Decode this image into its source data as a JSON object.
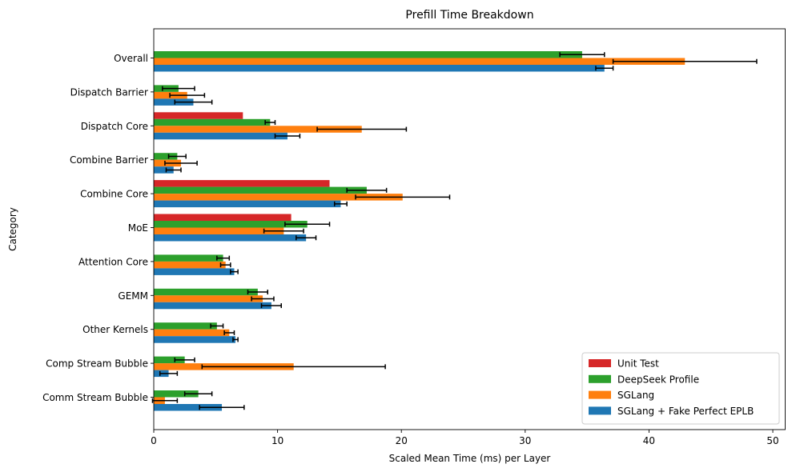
{
  "chart_data": {
    "type": "bar",
    "orientation": "horizontal",
    "title": "Prefill Time Breakdown",
    "xlabel": "Scaled Mean Time (ms) per Layer",
    "ylabel": "Category",
    "xlim": [
      0,
      51
    ],
    "xticks": [
      0,
      10,
      20,
      30,
      40,
      50
    ],
    "grid": false,
    "legend_position": "lower-right",
    "categories": [
      "Overall",
      "Dispatch Barrier",
      "Dispatch Core",
      "Combine Barrier",
      "Combine Core",
      "MoE",
      "Attention Core",
      "GEMM",
      "Other Kernels",
      "Comp Stream Bubble",
      "Comm Stream Bubble"
    ],
    "series": [
      {
        "name": "Unit Test",
        "color": "#d62728",
        "values": [
          null,
          null,
          7.2,
          null,
          14.2,
          11.1,
          null,
          null,
          null,
          null,
          null
        ],
        "errors": [
          null,
          null,
          null,
          null,
          null,
          null,
          null,
          null,
          null,
          null,
          null
        ]
      },
      {
        "name": "DeepSeek Profile",
        "color": "#2ca02c",
        "values": [
          34.6,
          2.0,
          9.4,
          1.9,
          17.2,
          12.4,
          5.6,
          8.4,
          5.1,
          2.5,
          3.6
        ],
        "errors": [
          1.8,
          1.3,
          0.4,
          0.7,
          1.6,
          1.8,
          0.5,
          0.8,
          0.5,
          0.8,
          1.1
        ]
      },
      {
        "name": "SGLang",
        "color": "#ff7f0e",
        "values": [
          42.9,
          2.7,
          16.8,
          2.2,
          20.1,
          10.5,
          5.8,
          8.8,
          6.1,
          11.3,
          0.9
        ],
        "errors": [
          5.8,
          1.4,
          3.6,
          1.3,
          3.8,
          1.6,
          0.4,
          0.9,
          0.4,
          7.4,
          1.0
        ]
      },
      {
        "name": "SGLang + Fake Perfect EPLB",
        "color": "#1f77b4",
        "values": [
          36.4,
          3.2,
          10.8,
          1.6,
          15.1,
          12.3,
          6.5,
          9.5,
          6.6,
          1.2,
          5.5
        ],
        "errors": [
          0.7,
          1.5,
          1.0,
          0.6,
          0.5,
          0.8,
          0.3,
          0.8,
          0.2,
          0.7,
          1.8
        ]
      }
    ],
    "legend_order": [
      "Unit Test",
      "DeepSeek Profile",
      "SGLang",
      "SGLang + Fake Perfect EPLB"
    ]
  }
}
